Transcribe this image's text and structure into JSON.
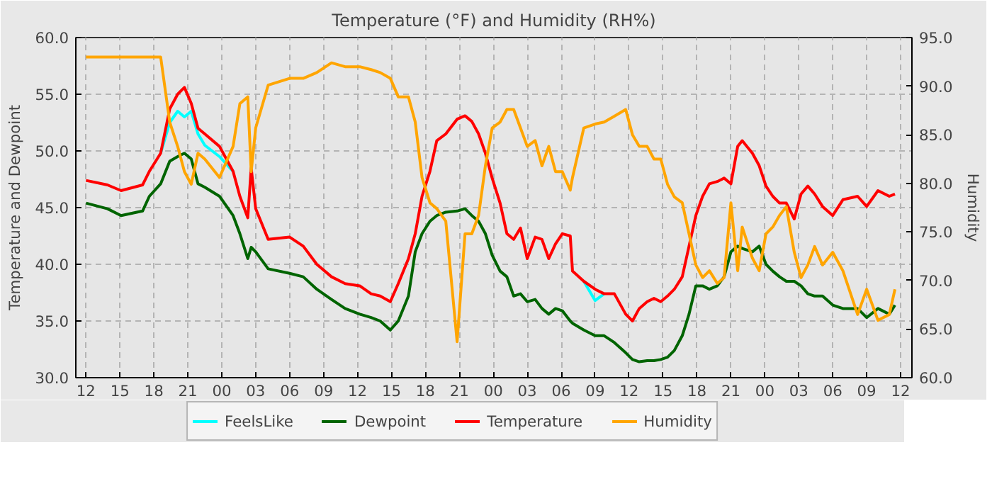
{
  "chart_data": {
    "type": "line",
    "title": "Temperature (°F) and Humidity (RH%)",
    "ylabel": "Temperature and Dewpoint",
    "y2label": "Humidity",
    "x": [
      12,
      13.9,
      15.1,
      17,
      17.6,
      18.6,
      19.4,
      20.1,
      20.7,
      21.3,
      21.9,
      22.5,
      23.8,
      25,
      25.6,
      26.3,
      26.6,
      27,
      28.1,
      30,
      31.2,
      32.4,
      33.7,
      34.9,
      36.2,
      37.2,
      38,
      38.9,
      39.6,
      40.5,
      41.1,
      41.7,
      42.4,
      43,
      43.8,
      44.8,
      45.5,
      46.1,
      46.7,
      47.3,
      47.9,
      48.6,
      49.2,
      49.8,
      50.4,
      51,
      51.7,
      52.3,
      52.9,
      53.5,
      54.1,
      54.8,
      55,
      56,
      57,
      57.8,
      58.7,
      59.7,
      60.3,
      60.9,
      61.6,
      62.2,
      62.8,
      63.4,
      64,
      64.7,
      65.3,
      65.9,
      66.5,
      67.1,
      67.8,
      68.4,
      69,
      69.6,
      70,
      70.9,
      71.5,
      72.1,
      72.7,
      73.3,
      73.9,
      74.6,
      75.2,
      75.8,
      76.4,
      77.1,
      78,
      78.9,
      80.2,
      81,
      82,
      83,
      83.5
    ],
    "series": [
      {
        "name": "FeelsLike",
        "color": "#00ffff",
        "values": [
          null,
          null,
          null,
          null,
          null,
          49.8,
          52.5,
          53.5,
          53,
          53.5,
          51.5,
          50.5,
          49.5,
          48.2,
          null,
          null,
          null,
          null,
          null,
          null,
          null,
          null,
          null,
          null,
          null,
          null,
          null,
          null,
          null,
          null,
          null,
          null,
          null,
          null,
          null,
          null,
          null,
          null,
          null,
          null,
          null,
          null,
          null,
          null,
          null,
          null,
          null,
          null,
          null,
          null,
          null,
          null,
          null,
          38.5,
          36.8,
          37.4,
          null,
          null,
          null,
          null,
          null,
          null,
          null,
          null,
          null,
          null,
          null,
          null,
          null,
          null,
          null,
          null,
          null,
          null,
          null,
          null,
          null,
          null,
          null,
          null,
          null,
          null,
          null,
          null,
          null,
          null,
          null,
          null,
          null,
          null,
          null,
          null,
          null
        ]
      },
      {
        "name": "Dewpoint",
        "color": "#006400",
        "values": [
          45.4,
          44.9,
          44.3,
          44.7,
          46,
          47.1,
          49.1,
          49.5,
          49.8,
          49.3,
          47.1,
          46.8,
          46,
          44.3,
          42.7,
          40.5,
          41.5,
          41.1,
          39.6,
          39.2,
          38.9,
          37.8,
          36.9,
          36.1,
          35.6,
          35.3,
          35,
          34.2,
          35,
          37.2,
          41.1,
          42.7,
          43.8,
          44.3,
          44.6,
          44.7,
          44.9,
          44.3,
          43.8,
          42.7,
          40.8,
          39.4,
          38.9,
          37.2,
          37.4,
          36.7,
          36.9,
          36.1,
          35.6,
          36.1,
          35.9,
          35,
          34.8,
          34.2,
          33.7,
          33.7,
          33.1,
          32.2,
          31.6,
          31.4,
          31.5,
          31.5,
          31.6,
          31.8,
          32.4,
          33.7,
          35.6,
          38.1,
          38.1,
          37.8,
          38.1,
          38.9,
          41.1,
          41.6,
          41.4,
          41.1,
          41.6,
          40,
          39.4,
          38.9,
          38.5,
          38.5,
          38.1,
          37.4,
          37.2,
          37.2,
          36.4,
          36.1,
          36.1,
          35.3,
          36.1,
          35.6,
          36.4
        ]
      },
      {
        "name": "Temperature",
        "color": "#ff0000",
        "values": [
          47.4,
          47,
          46.5,
          47,
          48.2,
          49.8,
          53.7,
          55,
          55.6,
          54.2,
          52,
          51.5,
          50.4,
          48.2,
          46,
          44.1,
          48.5,
          44.9,
          42.2,
          42.4,
          41.6,
          40,
          38.9,
          38.3,
          38.1,
          37.4,
          37.2,
          36.7,
          38.3,
          40.5,
          42.7,
          46,
          48.2,
          50.9,
          51.5,
          52.8,
          53.1,
          52.6,
          51.5,
          49.8,
          47.6,
          45.4,
          42.7,
          42.2,
          43.2,
          40.5,
          42.4,
          42.2,
          40.5,
          41.8,
          42.7,
          42.5,
          39.4,
          38.5,
          37.8,
          37.4,
          37.4,
          35.6,
          35,
          36.1,
          36.7,
          37,
          36.7,
          37.2,
          37.8,
          38.9,
          41.6,
          44.3,
          46,
          47.1,
          47.3,
          47.6,
          47.1,
          50.4,
          50.9,
          49.8,
          48.7,
          46.9,
          46,
          45.4,
          45.4,
          44,
          46.2,
          46.9,
          46.2,
          45.1,
          44.3,
          45.7,
          46,
          45.1,
          46.5,
          46,
          46.2
        ]
      },
      {
        "name": "Humidity",
        "color": "#ffa500",
        "axis": "y2",
        "values": [
          93,
          93,
          93,
          93,
          93,
          93,
          86.3,
          83.8,
          81.2,
          79.9,
          83.1,
          82.5,
          80.6,
          83.8,
          88.2,
          88.9,
          81.2,
          85.7,
          90.1,
          90.8,
          90.8,
          91.4,
          92.4,
          92,
          92,
          91.7,
          91.4,
          90.8,
          88.9,
          88.9,
          86.3,
          80.6,
          78,
          77.4,
          76.1,
          63.7,
          74.8,
          74.8,
          76.7,
          81.8,
          85.7,
          86.3,
          87.6,
          87.6,
          85.7,
          83.8,
          84.4,
          81.8,
          83.8,
          81.2,
          81.2,
          79.3,
          80.6,
          85.7,
          86.1,
          86.3,
          86.9,
          87.6,
          85,
          83.8,
          83.8,
          82.5,
          82.5,
          79.9,
          78.6,
          78,
          74.8,
          71.6,
          70.3,
          71,
          69.7,
          70.3,
          78,
          71,
          75.5,
          72.3,
          71,
          74.8,
          75.5,
          76.7,
          77.6,
          72.9,
          70.3,
          71.6,
          73.5,
          71.6,
          72.9,
          71,
          66.5,
          69.1,
          65.9,
          66.5,
          69.1
        ]
      }
    ],
    "xlim": [
      11.1,
      85
    ],
    "xticks": [
      {
        "value": 12,
        "label": "12"
      },
      {
        "value": 15,
        "label": "15"
      },
      {
        "value": 18,
        "label": "18"
      },
      {
        "value": 21,
        "label": "21"
      },
      {
        "value": 24,
        "label": "00"
      },
      {
        "value": 27,
        "label": "03"
      },
      {
        "value": 30,
        "label": "06"
      },
      {
        "value": 33,
        "label": "09"
      },
      {
        "value": 36,
        "label": "12"
      },
      {
        "value": 39,
        "label": "15"
      },
      {
        "value": 42,
        "label": "18"
      },
      {
        "value": 45,
        "label": "21"
      },
      {
        "value": 48,
        "label": "00"
      },
      {
        "value": 51,
        "label": "03"
      },
      {
        "value": 54,
        "label": "06"
      },
      {
        "value": 57,
        "label": "09"
      },
      {
        "value": 60,
        "label": "12"
      },
      {
        "value": 63,
        "label": "15"
      },
      {
        "value": 66,
        "label": "18"
      },
      {
        "value": 69,
        "label": "21"
      },
      {
        "value": 72,
        "label": "00"
      },
      {
        "value": 75,
        "label": "03"
      },
      {
        "value": 78,
        "label": "06"
      },
      {
        "value": 81,
        "label": "09"
      },
      {
        "value": 84,
        "label": "12"
      }
    ],
    "ylim": [
      30,
      60
    ],
    "yticks": [
      {
        "value": 30,
        "label": "30.0"
      },
      {
        "value": 35,
        "label": "35.0"
      },
      {
        "value": 40,
        "label": "40.0"
      },
      {
        "value": 45,
        "label": "45.0"
      },
      {
        "value": 50,
        "label": "50.0"
      },
      {
        "value": 55,
        "label": "55.0"
      },
      {
        "value": 60,
        "label": "60.0"
      }
    ],
    "y2lim": [
      60,
      95
    ],
    "y2ticks": [
      {
        "value": 60,
        "label": "60.0"
      },
      {
        "value": 65,
        "label": "65.0"
      },
      {
        "value": 70,
        "label": "70.0"
      },
      {
        "value": 75,
        "label": "75.0"
      },
      {
        "value": 80,
        "label": "80.0"
      },
      {
        "value": 85,
        "label": "85.0"
      },
      {
        "value": 90,
        "label": "90.0"
      },
      {
        "value": 95,
        "label": "95.0"
      }
    ],
    "grid": true,
    "legend": "bottom",
    "line_style": "solid"
  }
}
